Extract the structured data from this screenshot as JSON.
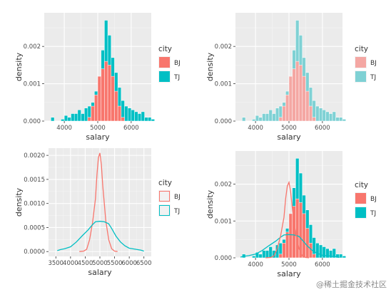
{
  "watermark": "@稀土掘金技术社区",
  "colors": {
    "bj": "#F8766D",
    "tj": "#00BFC4",
    "bj_light": "#F4A7A3",
    "tj_light": "#7FD1D4",
    "panel_bg": "#EBEBEB",
    "grid_major": "#FFFFFF",
    "text": "#333333",
    "tick_text": "#4D4D4D"
  },
  "chart_data": [
    {
      "panel": "top-left",
      "type": "histogram",
      "xlabel": "salary",
      "ylabel": "density",
      "xlim": [
        3400,
        6600
      ],
      "ylim": [
        0,
        0.0029
      ],
      "x_ticks": [
        "4000",
        "5000",
        "6000"
      ],
      "y_ticks": [
        "0.000",
        "0.001",
        "0.002"
      ],
      "legend": {
        "title": "city",
        "position": "right",
        "items": [
          "BJ",
          "TJ"
        ]
      },
      "bin_width": 100,
      "bin_start": 3500,
      "series": [
        {
          "name": "TJ",
          "style": "fill",
          "color": "#00BFC4",
          "values": [
            0,
            0.0001,
            0,
            0,
            5e-05,
            0.00015,
            0.0001,
            0.0002,
            0.0002,
            0.0003,
            0.0002,
            0.00035,
            0.0004,
            0.0005,
            0.0008,
            0.0012,
            0.0019,
            0.0027,
            0.0023,
            0.0017,
            0.0013,
            0.0009,
            0.00055,
            0.0004,
            0.00035,
            0.0003,
            0.00025,
            0.0002,
            0.00025,
            0.0001,
            0.0001,
            5e-05,
            0
          ]
        },
        {
          "name": "BJ",
          "style": "fill",
          "color": "#F8766D",
          "values": [
            0,
            0,
            0,
            0,
            0,
            0,
            0,
            0,
            0,
            0,
            0,
            0,
            0.0001,
            0.0004,
            0.0007,
            0.0012,
            0.0014,
            0.0016,
            0.0015,
            0.0012,
            0.0008,
            0.0004,
            0.0001,
            0,
            0,
            0,
            0,
            0,
            0,
            0,
            0,
            0,
            0
          ]
        }
      ]
    },
    {
      "panel": "top-right",
      "type": "histogram",
      "xlabel": "salary",
      "ylabel": "density",
      "xlim": [
        3400,
        6600
      ],
      "ylim": [
        0,
        0.0029
      ],
      "x_ticks": [
        "4000",
        "5000",
        "6000"
      ],
      "y_ticks": [
        "0.000",
        "0.001",
        "0.002"
      ],
      "legend": {
        "title": "city",
        "position": "right",
        "items": [
          "BJ",
          "TJ"
        ]
      },
      "bin_width": 100,
      "bin_start": 3500,
      "series": [
        {
          "name": "TJ",
          "style": "fill",
          "color": "#7FD1D4",
          "values": [
            0,
            0.0001,
            0,
            0,
            5e-05,
            0.00015,
            0.0001,
            0.0002,
            0.0002,
            0.0003,
            0.0002,
            0.00035,
            0.0004,
            0.0005,
            0.0008,
            0.0012,
            0.0019,
            0.0027,
            0.0023,
            0.0017,
            0.0013,
            0.0009,
            0.00055,
            0.0004,
            0.00035,
            0.0003,
            0.00025,
            0.0002,
            0.00025,
            0.0001,
            0.0001,
            5e-05,
            0
          ]
        },
        {
          "name": "BJ",
          "style": "fill",
          "color": "#F4A7A3",
          "values": [
            0,
            0,
            0,
            0,
            0,
            0,
            0,
            0,
            0,
            0,
            0,
            0,
            0.0001,
            0.0004,
            0.0007,
            0.0012,
            0.0014,
            0.0016,
            0.0015,
            0.0012,
            0.0008,
            0.0004,
            0.0001,
            0,
            0,
            0,
            0,
            0,
            0,
            0,
            0,
            0,
            0
          ]
        }
      ]
    },
    {
      "panel": "bottom-left",
      "type": "line",
      "xlabel": "salary",
      "ylabel": "density",
      "xlim": [
        3250,
        6750
      ],
      "ylim": [
        -0.0001,
        0.00215
      ],
      "x_ticks": [
        "3500",
        "4000",
        "4500",
        "5000",
        "5500",
        "6000",
        "6500"
      ],
      "y_ticks": [
        "0.0000",
        "0.0005",
        "0.0010",
        "0.0015",
        "0.0020"
      ],
      "legend": {
        "title": "city",
        "position": "right",
        "items": [
          "BJ",
          "TJ"
        ]
      },
      "series": [
        {
          "name": "BJ",
          "style": "line",
          "color": "#F8766D",
          "x": [
            4300,
            4450,
            4550,
            4650,
            4750,
            4850,
            4900,
            4950,
            5000,
            5050,
            5100,
            5150,
            5200,
            5300,
            5400,
            5500,
            5600
          ],
          "y": [
            0,
            1e-05,
            5e-05,
            0.00025,
            0.0006,
            0.0011,
            0.0016,
            0.00195,
            0.00205,
            0.0018,
            0.00135,
            0.001,
            0.00065,
            0.00025,
            6e-05,
            1e-05,
            0
          ]
        },
        {
          "name": "TJ",
          "style": "line",
          "color": "#00BFC4",
          "x": [
            3550,
            3650,
            3800,
            4000,
            4200,
            4400,
            4600,
            4750,
            4850,
            5000,
            5150,
            5300,
            5400,
            5550,
            5700,
            5850,
            6000,
            6200,
            6400,
            6500
          ],
          "y": [
            2e-05,
            4e-05,
            6e-05,
            0.0001,
            0.0002,
            0.00033,
            0.00045,
            0.00056,
            0.00062,
            0.00063,
            0.00062,
            0.00058,
            0.00048,
            0.00032,
            0.0002,
            0.00012,
            7e-05,
            5e-05,
            3e-05,
            1e-05
          ]
        }
      ]
    },
    {
      "panel": "bottom-right",
      "type": "histogram",
      "xlabel": "salary",
      "ylabel": "density",
      "xlim": [
        3400,
        6600
      ],
      "ylim": [
        0,
        0.0029
      ],
      "x_ticks": [
        "4000",
        "5000",
        "6000"
      ],
      "y_ticks": [
        "0.000",
        "0.001",
        "0.002"
      ],
      "legend": {
        "title": "city",
        "position": "right",
        "items": [
          "BJ",
          "TJ"
        ]
      },
      "bin_width": 100,
      "bin_start": 3500,
      "series": [
        {
          "name": "TJ",
          "style": "fill",
          "color": "#00BFC4",
          "values": [
            0,
            0.0001,
            0,
            0,
            5e-05,
            0.00015,
            0.0001,
            0.0002,
            0.0002,
            0.0003,
            0.0002,
            0.00035,
            0.0004,
            0.0005,
            0.0008,
            0.0012,
            0.0019,
            0.0027,
            0.0023,
            0.0017,
            0.0013,
            0.0009,
            0.00055,
            0.0004,
            0.00035,
            0.0003,
            0.00025,
            0.0002,
            0.00025,
            0.0001,
            0.0001,
            5e-05,
            0
          ]
        },
        {
          "name": "BJ",
          "style": "fill",
          "color": "#F8766D",
          "values": [
            0,
            0,
            0,
            0,
            0,
            0,
            0,
            0,
            0,
            0,
            0,
            0,
            0.0001,
            0.0004,
            0.0007,
            0.0012,
            0.0014,
            0.0016,
            0.0015,
            0.0012,
            0.0008,
            0.0004,
            0.0001,
            0,
            0,
            0,
            0,
            0,
            0,
            0,
            0,
            0,
            0
          ]
        },
        {
          "name": "TJ",
          "style": "line",
          "color": "#00BFC4",
          "x": [
            3550,
            3650,
            3800,
            4000,
            4200,
            4400,
            4600,
            4750,
            4850,
            5000,
            5150,
            5300,
            5400,
            5550,
            5700,
            5850,
            6000,
            6200,
            6400,
            6500
          ],
          "y": [
            2e-05,
            4e-05,
            6e-05,
            0.0001,
            0.0002,
            0.00033,
            0.00045,
            0.00056,
            0.00062,
            0.00063,
            0.00062,
            0.00058,
            0.00048,
            0.00032,
            0.0002,
            0.00012,
            7e-05,
            5e-05,
            3e-05,
            1e-05
          ]
        },
        {
          "name": "BJ",
          "style": "line",
          "color": "#F8766D",
          "x": [
            4300,
            4450,
            4550,
            4650,
            4750,
            4850,
            4900,
            4950,
            5000,
            5050,
            5100,
            5150,
            5200,
            5300,
            5400,
            5500,
            5600
          ],
          "y": [
            0,
            1e-05,
            5e-05,
            0.00025,
            0.0006,
            0.0011,
            0.0016,
            0.00195,
            0.00205,
            0.0018,
            0.00135,
            0.001,
            0.00065,
            0.00025,
            6e-05,
            1e-05,
            0
          ]
        }
      ]
    }
  ]
}
